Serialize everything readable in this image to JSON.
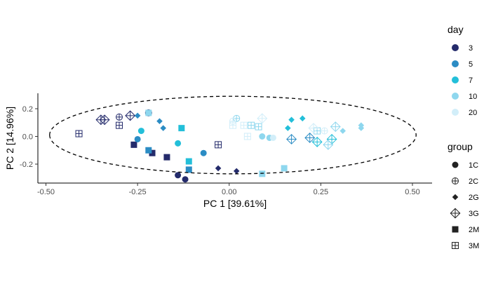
{
  "chart_data": {
    "type": "scatter",
    "xlabel": "PC 1 [39.61%]",
    "ylabel": "PC 2 [14.96%]",
    "xlim": [
      -0.5,
      0.55
    ],
    "ylim": [
      -0.35,
      0.32
    ],
    "x_ticks": [
      -0.5,
      -0.25,
      0.0,
      0.25,
      0.5
    ],
    "x_tick_labels": [
      "-0.50",
      "-0.25",
      "0.00",
      "0.25",
      "0.50"
    ],
    "y_ticks": [
      -0.2,
      0.0,
      0.2
    ],
    "y_tick_labels": [
      "-0.2",
      "0.0",
      "0.2"
    ],
    "grid": false,
    "legend_position": "right",
    "legend_day": {
      "title": "day",
      "items": [
        {
          "label": "3",
          "color": "#242b6b"
        },
        {
          "label": "5",
          "color": "#2b8cc4"
        },
        {
          "label": "7",
          "color": "#23bfd9"
        },
        {
          "label": "10",
          "color": "#8ed7ee"
        },
        {
          "label": "20",
          "color": "#d2eef9"
        }
      ]
    },
    "legend_group": {
      "title": "group",
      "items": [
        {
          "label": "1C",
          "shape": "circle"
        },
        {
          "label": "2C",
          "shape": "circle-plus"
        },
        {
          "label": "2G",
          "shape": "diamond"
        },
        {
          "label": "3G",
          "shape": "diamond-plus"
        },
        {
          "label": "2M",
          "shape": "square"
        },
        {
          "label": "3M",
          "shape": "square-plus"
        }
      ]
    },
    "ellipse": {
      "center": [
        0.01,
        0.01
      ],
      "semi_x": 0.5,
      "semi_y": 0.28,
      "style": "dashed"
    },
    "points": [
      {
        "x": -0.41,
        "y": 0.02,
        "day": "3",
        "group": "3M"
      },
      {
        "x": -0.35,
        "y": 0.12,
        "day": "3",
        "group": "3G"
      },
      {
        "x": -0.34,
        "y": 0.12,
        "day": "3",
        "group": "3G"
      },
      {
        "x": -0.3,
        "y": 0.14,
        "day": "3",
        "group": "2C"
      },
      {
        "x": -0.3,
        "y": 0.08,
        "day": "3",
        "group": "3M"
      },
      {
        "x": -0.27,
        "y": 0.15,
        "day": "3",
        "group": "3G"
      },
      {
        "x": -0.22,
        "y": 0.17,
        "day": "3",
        "group": "2C"
      },
      {
        "x": -0.26,
        "y": -0.06,
        "day": "3",
        "group": "2M"
      },
      {
        "x": -0.21,
        "y": -0.12,
        "day": "3",
        "group": "2M"
      },
      {
        "x": -0.17,
        "y": -0.15,
        "day": "3",
        "group": "2M"
      },
      {
        "x": -0.14,
        "y": -0.28,
        "day": "3",
        "group": "1C"
      },
      {
        "x": -0.12,
        "y": -0.31,
        "day": "3",
        "group": "1C"
      },
      {
        "x": -0.03,
        "y": -0.23,
        "day": "3",
        "group": "2G"
      },
      {
        "x": 0.02,
        "y": -0.25,
        "day": "3",
        "group": "2G"
      },
      {
        "x": -0.03,
        "y": -0.06,
        "day": "3",
        "group": "3M"
      },
      {
        "x": -0.25,
        "y": -0.02,
        "day": "5",
        "group": "1C"
      },
      {
        "x": -0.22,
        "y": -0.1,
        "day": "5",
        "group": "2M"
      },
      {
        "x": -0.25,
        "y": 0.15,
        "day": "5",
        "group": "2G"
      },
      {
        "x": -0.19,
        "y": 0.11,
        "day": "5",
        "group": "2G"
      },
      {
        "x": -0.18,
        "y": 0.06,
        "day": "5",
        "group": "2G"
      },
      {
        "x": -0.07,
        "y": -0.12,
        "day": "5",
        "group": "1C"
      },
      {
        "x": -0.11,
        "y": -0.24,
        "day": "5",
        "group": "2M"
      },
      {
        "x": 0.17,
        "y": -0.02,
        "day": "5",
        "group": "3G"
      },
      {
        "x": 0.22,
        "y": -0.01,
        "day": "5",
        "group": "3G"
      },
      {
        "x": -0.24,
        "y": 0.04,
        "day": "7",
        "group": "1C"
      },
      {
        "x": -0.14,
        "y": -0.05,
        "day": "7",
        "group": "1C"
      },
      {
        "x": -0.13,
        "y": 0.06,
        "day": "7",
        "group": "2M"
      },
      {
        "x": -0.11,
        "y": -0.18,
        "day": "7",
        "group": "2M"
      },
      {
        "x": 0.17,
        "y": 0.12,
        "day": "7",
        "group": "2G"
      },
      {
        "x": 0.2,
        "y": 0.13,
        "day": "7",
        "group": "2G"
      },
      {
        "x": 0.16,
        "y": 0.06,
        "day": "7",
        "group": "2G"
      },
      {
        "x": 0.24,
        "y": -0.04,
        "day": "7",
        "group": "3G"
      },
      {
        "x": 0.28,
        "y": -0.02,
        "day": "7",
        "group": "3G"
      },
      {
        "x": -0.22,
        "y": 0.17,
        "day": "10",
        "group": "2M"
      },
      {
        "x": 0.02,
        "y": 0.13,
        "day": "10",
        "group": "2C"
      },
      {
        "x": 0.06,
        "y": 0.08,
        "day": "10",
        "group": "3M"
      },
      {
        "x": 0.08,
        "y": 0.07,
        "day": "10",
        "group": "3M"
      },
      {
        "x": 0.09,
        "y": 0.0,
        "day": "10",
        "group": "1C"
      },
      {
        "x": 0.11,
        "y": -0.01,
        "day": "10",
        "group": "1C"
      },
      {
        "x": 0.09,
        "y": -0.27,
        "day": "10",
        "group": "2M"
      },
      {
        "x": 0.15,
        "y": -0.23,
        "day": "10",
        "group": "2M"
      },
      {
        "x": 0.24,
        "y": 0.04,
        "day": "10",
        "group": "3M"
      },
      {
        "x": 0.27,
        "y": -0.06,
        "day": "10",
        "group": "3G"
      },
      {
        "x": 0.29,
        "y": 0.07,
        "day": "10",
        "group": "3G"
      },
      {
        "x": 0.31,
        "y": 0.04,
        "day": "10",
        "group": "2G"
      },
      {
        "x": 0.36,
        "y": 0.08,
        "day": "10",
        "group": "2G"
      },
      {
        "x": 0.36,
        "y": 0.06,
        "day": "10",
        "group": "2G"
      },
      {
        "x": 0.01,
        "y": 0.11,
        "day": "20",
        "group": "2C"
      },
      {
        "x": 0.01,
        "y": 0.08,
        "day": "20",
        "group": "3M"
      },
      {
        "x": 0.05,
        "y": 0.0,
        "day": "20",
        "group": "3M"
      },
      {
        "x": 0.09,
        "y": 0.13,
        "day": "20",
        "group": "3G"
      },
      {
        "x": 0.12,
        "y": -0.01,
        "day": "20",
        "group": "1C"
      },
      {
        "x": 0.23,
        "y": 0.06,
        "day": "20",
        "group": "3G"
      },
      {
        "x": 0.26,
        "y": 0.04,
        "day": "20",
        "group": "2C"
      },
      {
        "x": 0.04,
        "y": 0.08,
        "day": "20",
        "group": "3M"
      }
    ]
  }
}
